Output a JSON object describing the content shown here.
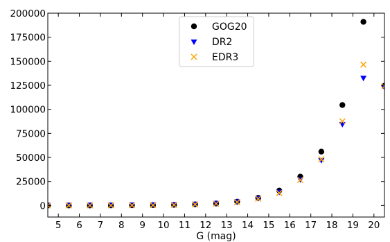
{
  "chart_data": {
    "type": "scatter",
    "xlabel": "G (mag)",
    "ylabel": "",
    "title": "",
    "xlim": [
      4.5,
      20.5
    ],
    "ylim": [
      -12000,
      200000
    ],
    "xticks": [
      5,
      6,
      7,
      8,
      9,
      10,
      11,
      12,
      13,
      14,
      15,
      16,
      17,
      18,
      19,
      20
    ],
    "yticks": [
      0,
      25000,
      50000,
      75000,
      100000,
      125000,
      150000,
      175000,
      200000
    ],
    "x_tick_labels": [
      "5",
      "6",
      "7",
      "8",
      "9",
      "10",
      "11",
      "12",
      "13",
      "14",
      "15",
      "16",
      "17",
      "18",
      "19",
      "20"
    ],
    "y_tick_labels": [
      "0",
      "25000",
      "50000",
      "75000",
      "100000",
      "125000",
      "150000",
      "175000",
      "200000"
    ],
    "legend_position": "top-center",
    "grid": false,
    "x": [
      4.5,
      5.5,
      6.5,
      7.5,
      8.5,
      9.5,
      10.5,
      11.5,
      12.5,
      13.5,
      14.5,
      15.5,
      16.5,
      17.5,
      18.5,
      19.5,
      20.5
    ],
    "series": [
      {
        "name": "GOG20",
        "marker": "circle",
        "color": "#000000",
        "values": [
          10,
          30,
          60,
          120,
          220,
          400,
          700,
          1200,
          2100,
          4000,
          8000,
          15500,
          30000,
          56000,
          104500,
          191000,
          124500
        ]
      },
      {
        "name": "DR2",
        "marker": "triangle-down",
        "color": "#0000ff",
        "values": [
          10,
          30,
          60,
          110,
          210,
          380,
          650,
          1100,
          1900,
          3600,
          7000,
          13500,
          26500,
          46500,
          84000,
          132000,
          122500
        ]
      },
      {
        "name": "EDR3",
        "marker": "x",
        "color": "#ffa500",
        "values": [
          10,
          30,
          60,
          110,
          210,
          380,
          650,
          1100,
          1900,
          3500,
          7000,
          13000,
          26500,
          48000,
          87500,
          146500,
          124000
        ]
      }
    ]
  }
}
